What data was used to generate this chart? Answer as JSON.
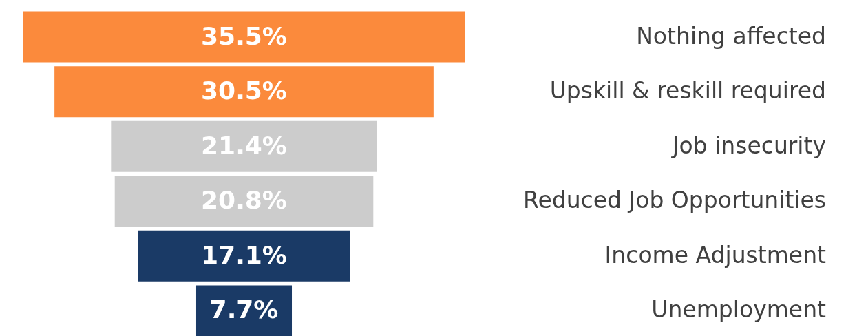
{
  "chart_data": {
    "type": "other",
    "categories": [
      "Nothing affected",
      "Upskill & reskill required",
      "Job insecurity",
      "Reduced Job Opportunities",
      "Income Adjustment",
      "Unemployment"
    ],
    "values": [
      35.5,
      30.5,
      21.4,
      20.8,
      17.1,
      7.7
    ],
    "value_labels": [
      "35.5%",
      "30.5%",
      "21.4%",
      "20.8%",
      "17.1%",
      "7.7%"
    ],
    "colors": [
      "#fb8a3c",
      "#fb8a3c",
      "#cccccc",
      "#cccccc",
      "#1a3a66",
      "#1a3a66"
    ]
  }
}
